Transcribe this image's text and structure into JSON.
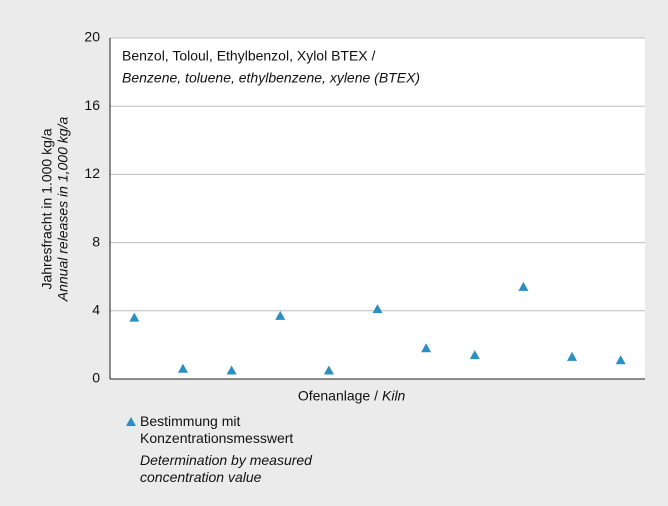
{
  "chart_data": {
    "type": "scatter",
    "title": "Benzol, Toloul, Ethylbenzol, Xylol BTEX /",
    "subtitle": "Benzene, toluene, ethylbenzene, xylene (BTEX)",
    "ylabel": "Jahresfracht in 1.000 kg/a",
    "ylabel_en": "Annual releases in 1,000 kg/a",
    "xlabel": "Ofenanlage /",
    "xlabel_en": "Kiln",
    "categories": [
      null,
      null,
      null,
      null,
      null,
      null,
      null,
      null,
      null,
      null,
      null
    ],
    "series": [
      {
        "name": "Bestimmung mit Konzentrationsmesswert",
        "name_en": "Determination by measured concentration value",
        "color": "#2a8fc1",
        "values": [
          3.6,
          0.6,
          0.5,
          3.7,
          0.5,
          4.1,
          1.8,
          1.4,
          5.4,
          1.3,
          1.1
        ]
      }
    ],
    "ylim": [
      0,
      20
    ],
    "yticks": [
      0,
      4,
      8,
      12,
      16,
      20
    ],
    "grid": true
  }
}
